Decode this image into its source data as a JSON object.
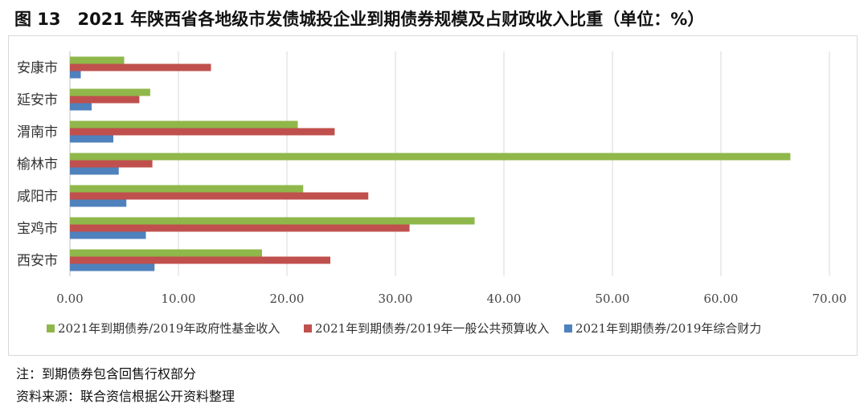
{
  "title": "图 13　2021 年陕西省各地级市发债城投企业到期债券规模及占财政收入比重（单位：%）",
  "notes": {
    "note": "注：到期债券包含回售行权部分",
    "source": "资料来源：联合资信根据公开资料整理"
  },
  "chart_data": {
    "type": "bar",
    "orientation": "horizontal",
    "categories": [
      "安康市",
      "延安市",
      "渭南市",
      "榆林市",
      "咸阳市",
      "宝鸡市",
      "西安市"
    ],
    "series": [
      {
        "name": "2021年到期债券/2019年政府性基金收入",
        "color": "#8fb74a",
        "values": [
          5.0,
          7.4,
          21.0,
          66.4,
          21.5,
          37.3,
          17.7
        ]
      },
      {
        "name": "2021年到期债券/2019年一般公共预算收入",
        "color": "#c0504d",
        "values": [
          13.0,
          6.4,
          24.4,
          7.6,
          27.5,
          31.3,
          24.0
        ]
      },
      {
        "name": "2021年到期债券/2019年综合财力",
        "color": "#4f81bd",
        "values": [
          1.0,
          2.0,
          4.0,
          4.5,
          5.2,
          7.0,
          7.8
        ]
      }
    ],
    "xlim": [
      0,
      70
    ],
    "xticks": [
      "0.00",
      "10.00",
      "20.00",
      "30.00",
      "40.00",
      "50.00",
      "60.00",
      "70.00"
    ],
    "grid": true,
    "legend": "bottom"
  }
}
